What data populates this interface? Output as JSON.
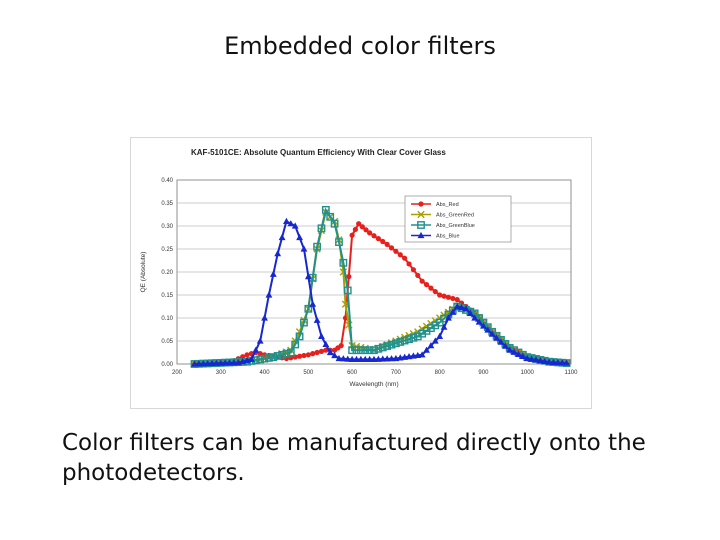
{
  "slide": {
    "title": "Embedded color filters",
    "caption": "Color filters can be manufactured directly onto the photodetectors."
  },
  "chart_data": {
    "type": "line",
    "title": "KAF-5101CE: Absolute Quantum Efficiency With Clear Cover Glass",
    "xlabel": "Wavelength (nm)",
    "ylabel": "QE (Absolute)",
    "xlim": [
      200,
      1100
    ],
    "ylim": [
      0,
      0.4
    ],
    "xticks": [
      200,
      300,
      400,
      500,
      600,
      700,
      800,
      900,
      1000,
      1100
    ],
    "yticks": [
      0.0,
      0.05,
      0.1,
      0.15,
      0.2,
      0.25,
      0.3,
      0.35,
      0.4
    ],
    "ytick_labels": [
      "0.00",
      "0.05",
      "0.10",
      "0.15",
      "0.20",
      "0.25",
      "0.30",
      "0.35",
      "0.40"
    ],
    "grid": "horizontal",
    "legend_position": "top-right",
    "series": [
      {
        "name": "Abs_Red",
        "color": "#e8201c",
        "marker": "circle",
        "x": [
          240,
          320,
          360,
          380,
          400,
          450,
          500,
          540,
          560,
          575,
          585,
          600,
          615,
          640,
          680,
          720,
          760,
          800,
          840,
          880,
          920,
          960,
          1000,
          1050,
          1090
        ],
        "y": [
          0.0,
          0.003,
          0.02,
          0.025,
          0.02,
          0.012,
          0.02,
          0.03,
          0.03,
          0.04,
          0.1,
          0.28,
          0.305,
          0.285,
          0.26,
          0.23,
          0.18,
          0.15,
          0.14,
          0.11,
          0.07,
          0.035,
          0.015,
          0.005,
          0.002
        ]
      },
      {
        "name": "Abs_GreenRed",
        "color": "#a8a000",
        "marker": "x",
        "x": [
          240,
          360,
          420,
          460,
          480,
          500,
          520,
          540,
          560,
          570,
          580,
          585,
          600,
          650,
          700,
          750,
          800,
          840,
          880,
          920,
          960,
          1000,
          1050,
          1090
        ],
        "y": [
          0.0,
          0.005,
          0.015,
          0.03,
          0.07,
          0.12,
          0.25,
          0.33,
          0.31,
          0.27,
          0.2,
          0.13,
          0.04,
          0.03,
          0.05,
          0.07,
          0.1,
          0.125,
          0.11,
          0.07,
          0.035,
          0.015,
          0.005,
          0.002
        ]
      },
      {
        "name": "Abs_GreenBlue",
        "color": "#22908c",
        "marker": "square",
        "x": [
          240,
          360,
          420,
          460,
          480,
          500,
          520,
          540,
          560,
          570,
          580,
          590,
          600,
          650,
          700,
          750,
          800,
          840,
          880,
          920,
          960,
          1000,
          1050,
          1090
        ],
        "y": [
          0.0,
          0.005,
          0.015,
          0.025,
          0.06,
          0.12,
          0.255,
          0.335,
          0.305,
          0.265,
          0.22,
          0.16,
          0.03,
          0.03,
          0.045,
          0.06,
          0.09,
          0.125,
          0.11,
          0.07,
          0.035,
          0.015,
          0.005,
          0.002
        ]
      },
      {
        "name": "Abs_Blue",
        "color": "#1828d0",
        "marker": "triangle",
        "x": [
          240,
          340,
          370,
          390,
          410,
          430,
          450,
          470,
          490,
          510,
          530,
          550,
          570,
          600,
          650,
          700,
          760,
          800,
          820,
          840,
          860,
          880,
          920,
          960,
          1000,
          1050,
          1090
        ],
        "y": [
          0.0,
          0.003,
          0.01,
          0.05,
          0.15,
          0.24,
          0.31,
          0.3,
          0.25,
          0.13,
          0.06,
          0.025,
          0.012,
          0.01,
          0.01,
          0.012,
          0.02,
          0.06,
          0.1,
          0.125,
          0.12,
          0.1,
          0.065,
          0.03,
          0.012,
          0.004,
          0.002
        ]
      }
    ]
  }
}
